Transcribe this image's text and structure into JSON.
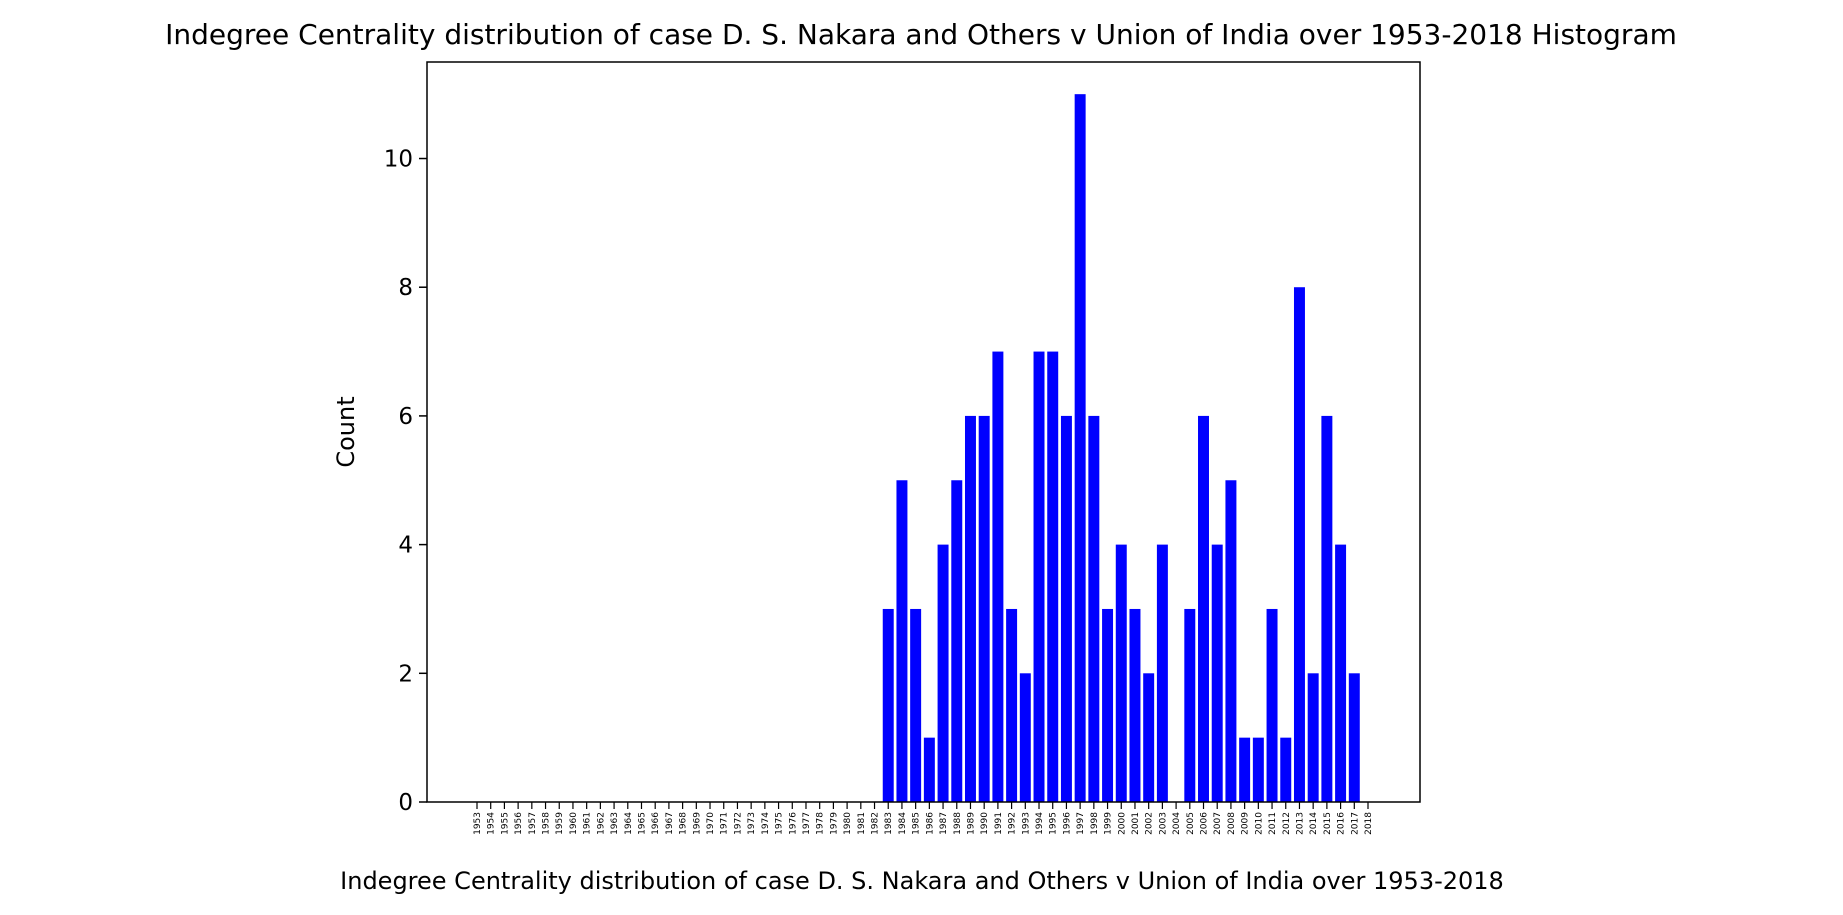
{
  "chart_data": {
    "type": "bar",
    "title": "Indegree Centrality distribution of case D. S. Nakara and Others v Union of India over 1953-2018 Histogram",
    "xlabel": "Indegree Centrality distribution of case D. S. Nakara and Others v Union of India over 1953-2018",
    "ylabel": "Count",
    "ylim": [
      0,
      11.5
    ],
    "yticks": [
      0,
      2,
      4,
      6,
      8,
      10
    ],
    "bar_color": "#0000ff",
    "grid": false,
    "categories": [
      "1953",
      "1954",
      "1955",
      "1956",
      "1957",
      "1958",
      "1959",
      "1960",
      "1961",
      "1962",
      "1963",
      "1964",
      "1965",
      "1966",
      "1967",
      "1968",
      "1969",
      "1970",
      "1971",
      "1972",
      "1973",
      "1974",
      "1975",
      "1976",
      "1977",
      "1978",
      "1979",
      "1980",
      "1981",
      "1982",
      "1983",
      "1984",
      "1985",
      "1986",
      "1987",
      "1988",
      "1989",
      "1990",
      "1991",
      "1992",
      "1993",
      "1994",
      "1995",
      "1996",
      "1997",
      "1998",
      "1999",
      "2000",
      "2001",
      "2002",
      "2003",
      "2004",
      "2005",
      "2006",
      "2007",
      "2008",
      "2009",
      "2010",
      "2011",
      "2012",
      "2013",
      "2014",
      "2015",
      "2016",
      "2017",
      "2018"
    ],
    "values": [
      0,
      0,
      0,
      0,
      0,
      0,
      0,
      0,
      0,
      0,
      0,
      0,
      0,
      0,
      0,
      0,
      0,
      0,
      0,
      0,
      0,
      0,
      0,
      0,
      0,
      0,
      0,
      0,
      0,
      0,
      3,
      5,
      3,
      1,
      4,
      5,
      6,
      6,
      7,
      3,
      2,
      7,
      7,
      6,
      11,
      6,
      3,
      4,
      3,
      2,
      4,
      0,
      3,
      6,
      4,
      5,
      1,
      1,
      3,
      1,
      8,
      2,
      6,
      4,
      2,
      0
    ]
  }
}
